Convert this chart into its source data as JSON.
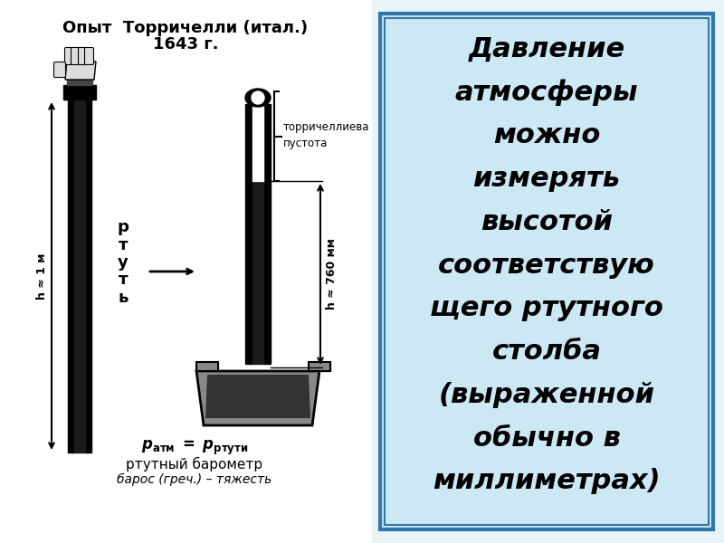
{
  "bg_color": "#e8f4f8",
  "left_bg": "#ffffff",
  "right_bg": "#d6eaf8",
  "right_border": "#5588bb",
  "title1": "Опыт  Торричелли (итал.)",
  "title2": "1643 г.",
  "label_rtut": "р\nт\nу\nт\nь",
  "label_h1m": "h ≈ 1 м",
  "label_h760": "h ≈ 760 мм",
  "label_torr1": "торричеллиева",
  "label_torr2": "пустота",
  "label_patm": "p",
  "label_patm_sub": "атм",
  "label_prtut": "p",
  "label_prtut_sub": "ртути",
  "label_baro1": "ртутный барометр",
  "label_baro2": "барос (греч.) – тяжесть",
  "right_text_lines": [
    "Давление",
    "атмосферы",
    "можно",
    "измерять",
    "высотой",
    "соответствую",
    "щего ртутного",
    "столба",
    "(выраженной",
    "обычно в",
    "миллиметрах)"
  ]
}
